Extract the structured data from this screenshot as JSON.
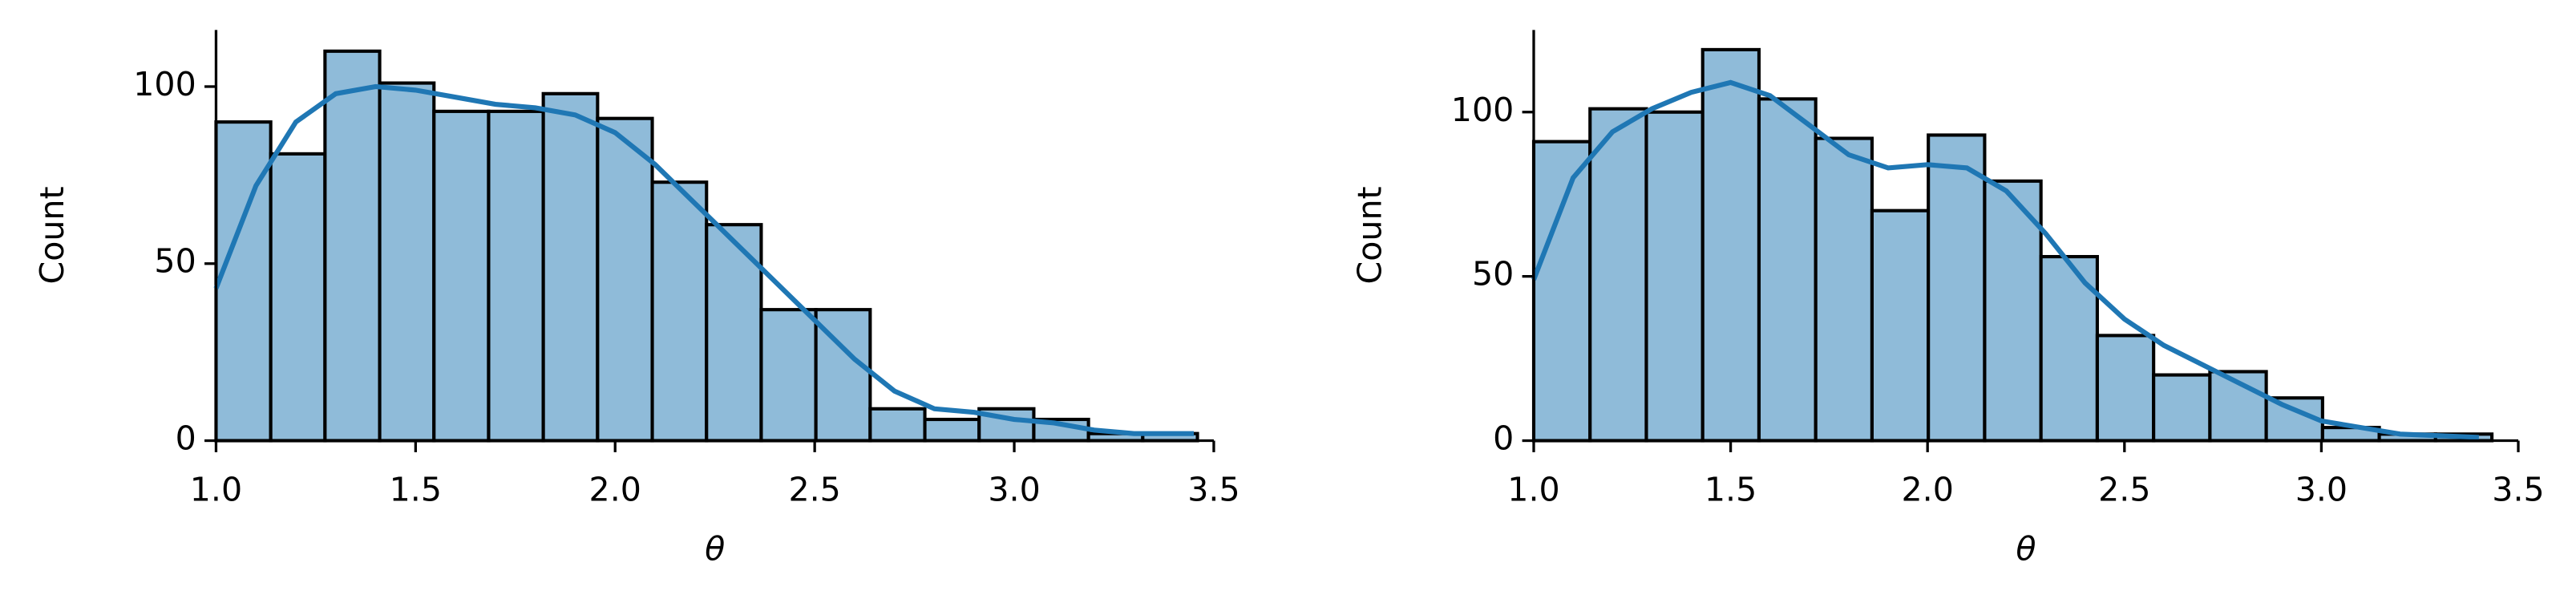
{
  "chart_data": [
    {
      "type": "histogram",
      "xlabel": "θ",
      "ylabel": "Count",
      "bins": [
        1.0,
        1.137,
        1.273,
        1.41,
        1.546,
        1.683,
        1.82,
        1.956,
        2.093,
        2.229,
        2.366,
        2.503,
        2.639,
        2.776,
        2.912,
        3.049,
        3.186,
        3.322,
        3.459
      ],
      "values": [
        90,
        81,
        110,
        101,
        93,
        93,
        98,
        91,
        73,
        61,
        37,
        37,
        9,
        6,
        9,
        6,
        2,
        2
      ],
      "color": "#8fbbd9",
      "edgecolor": "#000000",
      "kde": {
        "color": "#1f77b4",
        "x": [
          1.0,
          1.1,
          1.2,
          1.3,
          1.4,
          1.5,
          1.6,
          1.7,
          1.8,
          1.9,
          2.0,
          2.1,
          2.2,
          2.3,
          2.4,
          2.5,
          2.6,
          2.7,
          2.8,
          2.9,
          3.0,
          3.1,
          3.2,
          3.3,
          3.45
        ],
        "y": [
          43,
          72,
          90,
          98,
          100,
          99,
          97,
          95,
          94,
          92,
          87,
          78,
          67,
          56,
          45,
          34,
          23,
          14,
          9,
          8,
          6,
          5,
          3,
          2,
          2
        ]
      },
      "xlim": [
        1.0,
        3.5
      ],
      "xticks": [
        {
          "value": 1.0,
          "label": "1.0"
        },
        1.5,
        {
          "value": 2.0,
          "label": "2.0"
        },
        2.5,
        {
          "value": 3.0,
          "label": "3.0"
        },
        3.5
      ],
      "ylim": [
        0,
        116
      ],
      "yticks": [
        0,
        50,
        100
      ]
    },
    {
      "type": "histogram",
      "xlabel": "θ",
      "ylabel": "Count",
      "bins": [
        1.0,
        1.143,
        1.286,
        1.429,
        1.572,
        1.716,
        1.859,
        2.002,
        2.145,
        2.288,
        2.431,
        2.574,
        2.717,
        2.86,
        3.003,
        3.147,
        3.29,
        3.433
      ],
      "values": [
        91,
        101,
        100,
        119,
        104,
        92,
        70,
        93,
        79,
        56,
        32,
        20,
        21,
        13,
        4,
        2,
        2
      ],
      "color": "#8fbbd9",
      "edgecolor": "#000000",
      "kde": {
        "color": "#1f77b4",
        "x": [
          1.0,
          1.1,
          1.2,
          1.3,
          1.4,
          1.5,
          1.6,
          1.7,
          1.8,
          1.9,
          2.0,
          2.1,
          2.2,
          2.3,
          2.4,
          2.5,
          2.6,
          2.7,
          2.8,
          2.9,
          3.0,
          3.1,
          3.2,
          3.3,
          3.4
        ],
        "y": [
          49,
          80,
          94,
          101,
          106,
          109,
          105,
          96,
          87,
          83,
          84,
          83,
          76,
          63,
          48,
          37,
          29,
          23,
          17,
          11,
          6,
          4,
          2,
          1.5,
          1
        ]
      },
      "xlim": [
        1.0,
        3.5
      ],
      "xticks": [
        {
          "value": 1.0,
          "label": "1.0"
        },
        1.5,
        {
          "value": 2.0,
          "label": "2.0"
        },
        2.5,
        {
          "value": 3.0,
          "label": "3.0"
        },
        3.5
      ],
      "ylim": [
        0,
        125
      ],
      "yticks": [
        0,
        50,
        100
      ]
    }
  ]
}
